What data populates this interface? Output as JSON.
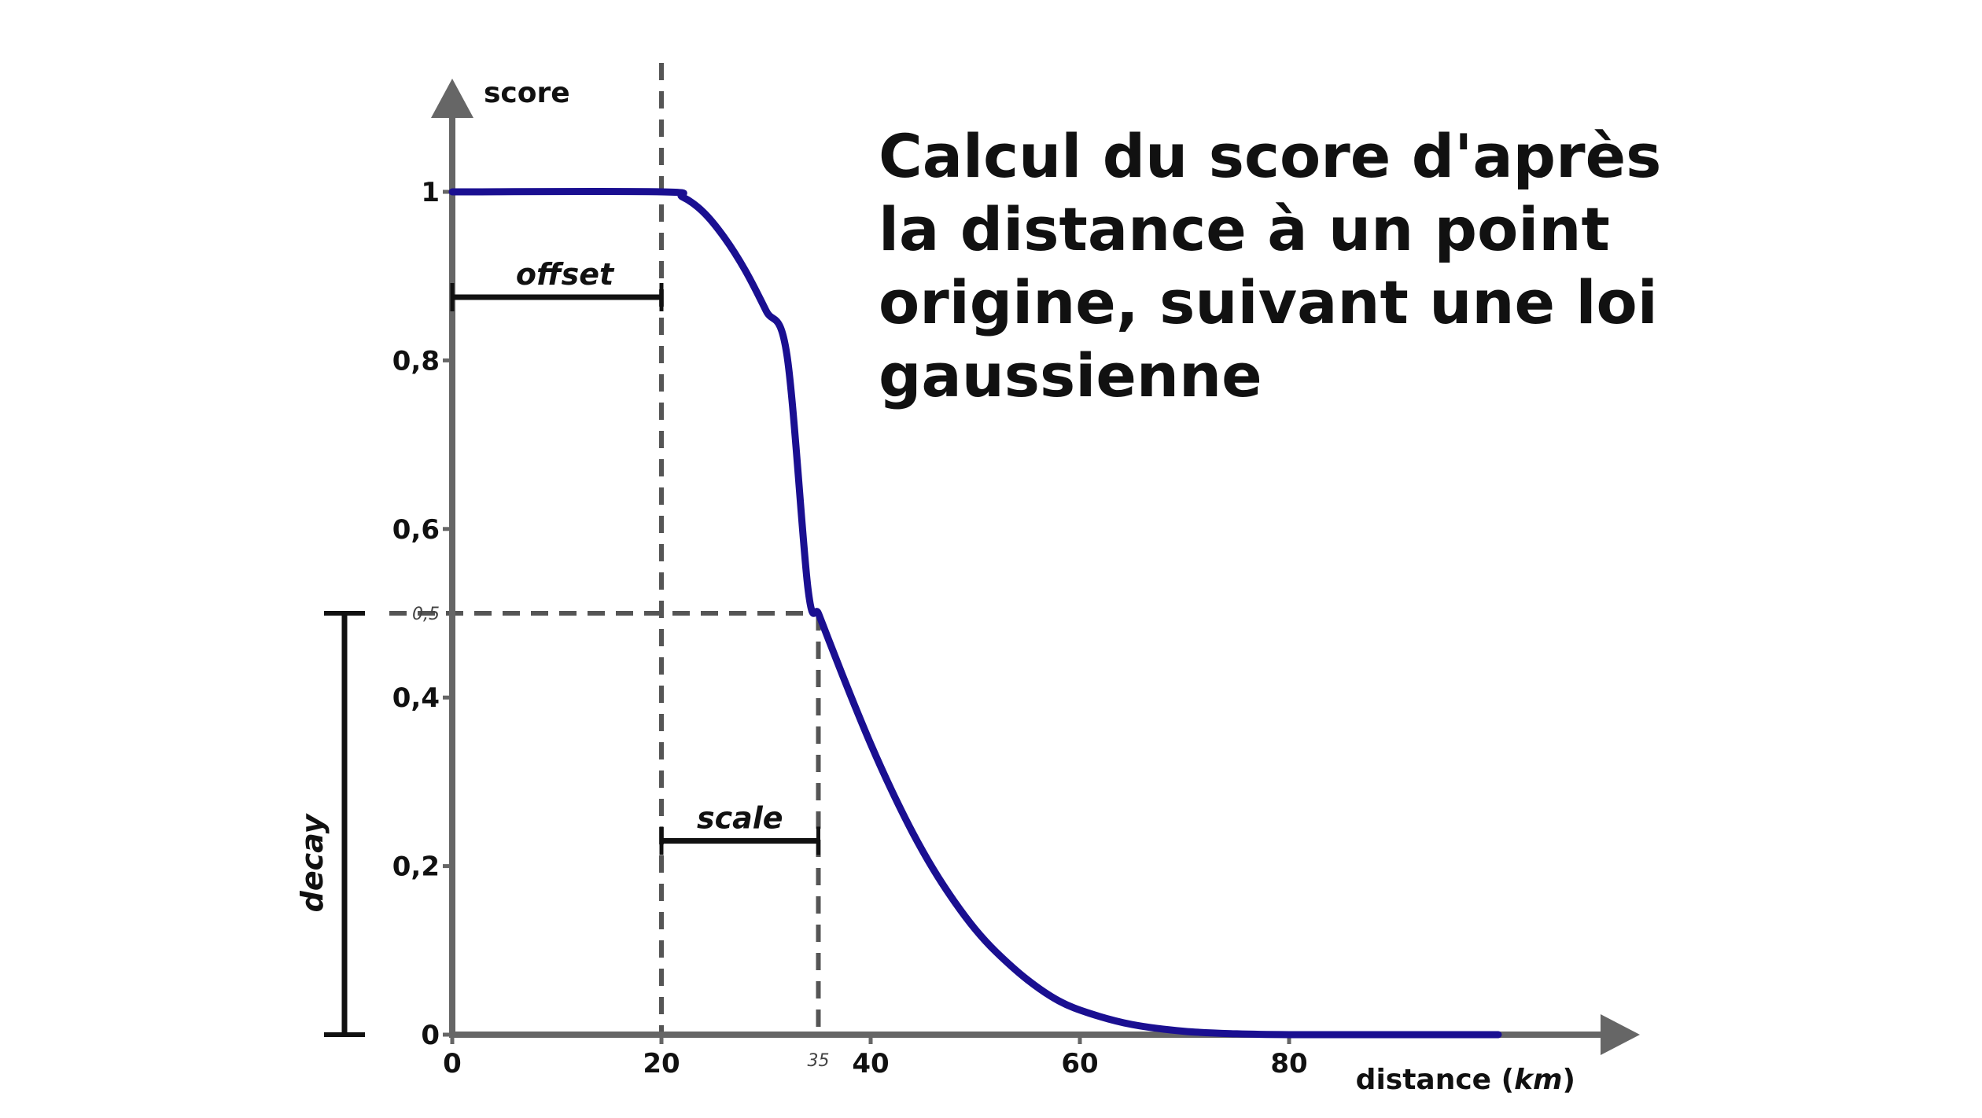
{
  "chart_data": {
    "type": "line",
    "title_lines": [
      "Calcul du score d'après",
      "la distance à un point",
      "origine, suivant une loi",
      "gaussienne"
    ],
    "xlabel_main": "distance (",
    "xlabel_unit": "km",
    "xlabel_close": ")",
    "ylabel": "score",
    "xlim": [
      0,
      100
    ],
    "ylim": [
      0,
      1
    ],
    "x_ticks": [
      {
        "value": 0,
        "label": "0"
      },
      {
        "value": 20,
        "label": "20"
      },
      {
        "value": 40,
        "label": "40"
      },
      {
        "value": 60,
        "label": "60"
      },
      {
        "value": 80,
        "label": "80"
      }
    ],
    "y_ticks": [
      {
        "value": 0,
        "label": "0"
      },
      {
        "value": 0.2,
        "label": "0,2"
      },
      {
        "value": 0.4,
        "label": "0,4"
      },
      {
        "value": 0.6,
        "label": "0,6"
      },
      {
        "value": 0.8,
        "label": "0,8"
      },
      {
        "value": 1,
        "label": "1"
      }
    ],
    "marker_x": {
      "value": 35,
      "label": "35"
    },
    "marker_y": {
      "value": 0.5,
      "label": "0,5"
    },
    "series": [
      {
        "color": "#1a0f91",
        "x": [
          0,
          20,
          22,
          24,
          26,
          28,
          30,
          32,
          34,
          35,
          36,
          38,
          40,
          42,
          44,
          46,
          48,
          50,
          52,
          55,
          58,
          61,
          65,
          70,
          75,
          80,
          90,
          100
        ],
        "y": [
          1,
          1,
          0.994,
          0.976,
          0.946,
          0.907,
          0.859,
          0.806,
          0.53,
          0.5,
          0.468,
          0.405,
          0.345,
          0.29,
          0.24,
          0.196,
          0.158,
          0.125,
          0.098,
          0.065,
          0.04,
          0.025,
          0.012,
          0.004,
          0.001,
          0,
          0,
          0
        ]
      }
    ],
    "annotations": {
      "offset": {
        "label": "offset",
        "from": 0,
        "to": 20,
        "y": 0.875
      },
      "scale": {
        "label": "scale",
        "from": 20,
        "to": 35,
        "y": 0.23
      },
      "decay": {
        "label": "decay",
        "from": 0,
        "to": 0.5
      }
    },
    "colors": {
      "axis": "#666666",
      "curve": "#1a0f91",
      "guide": "#555555",
      "bracket": "#111111"
    }
  }
}
